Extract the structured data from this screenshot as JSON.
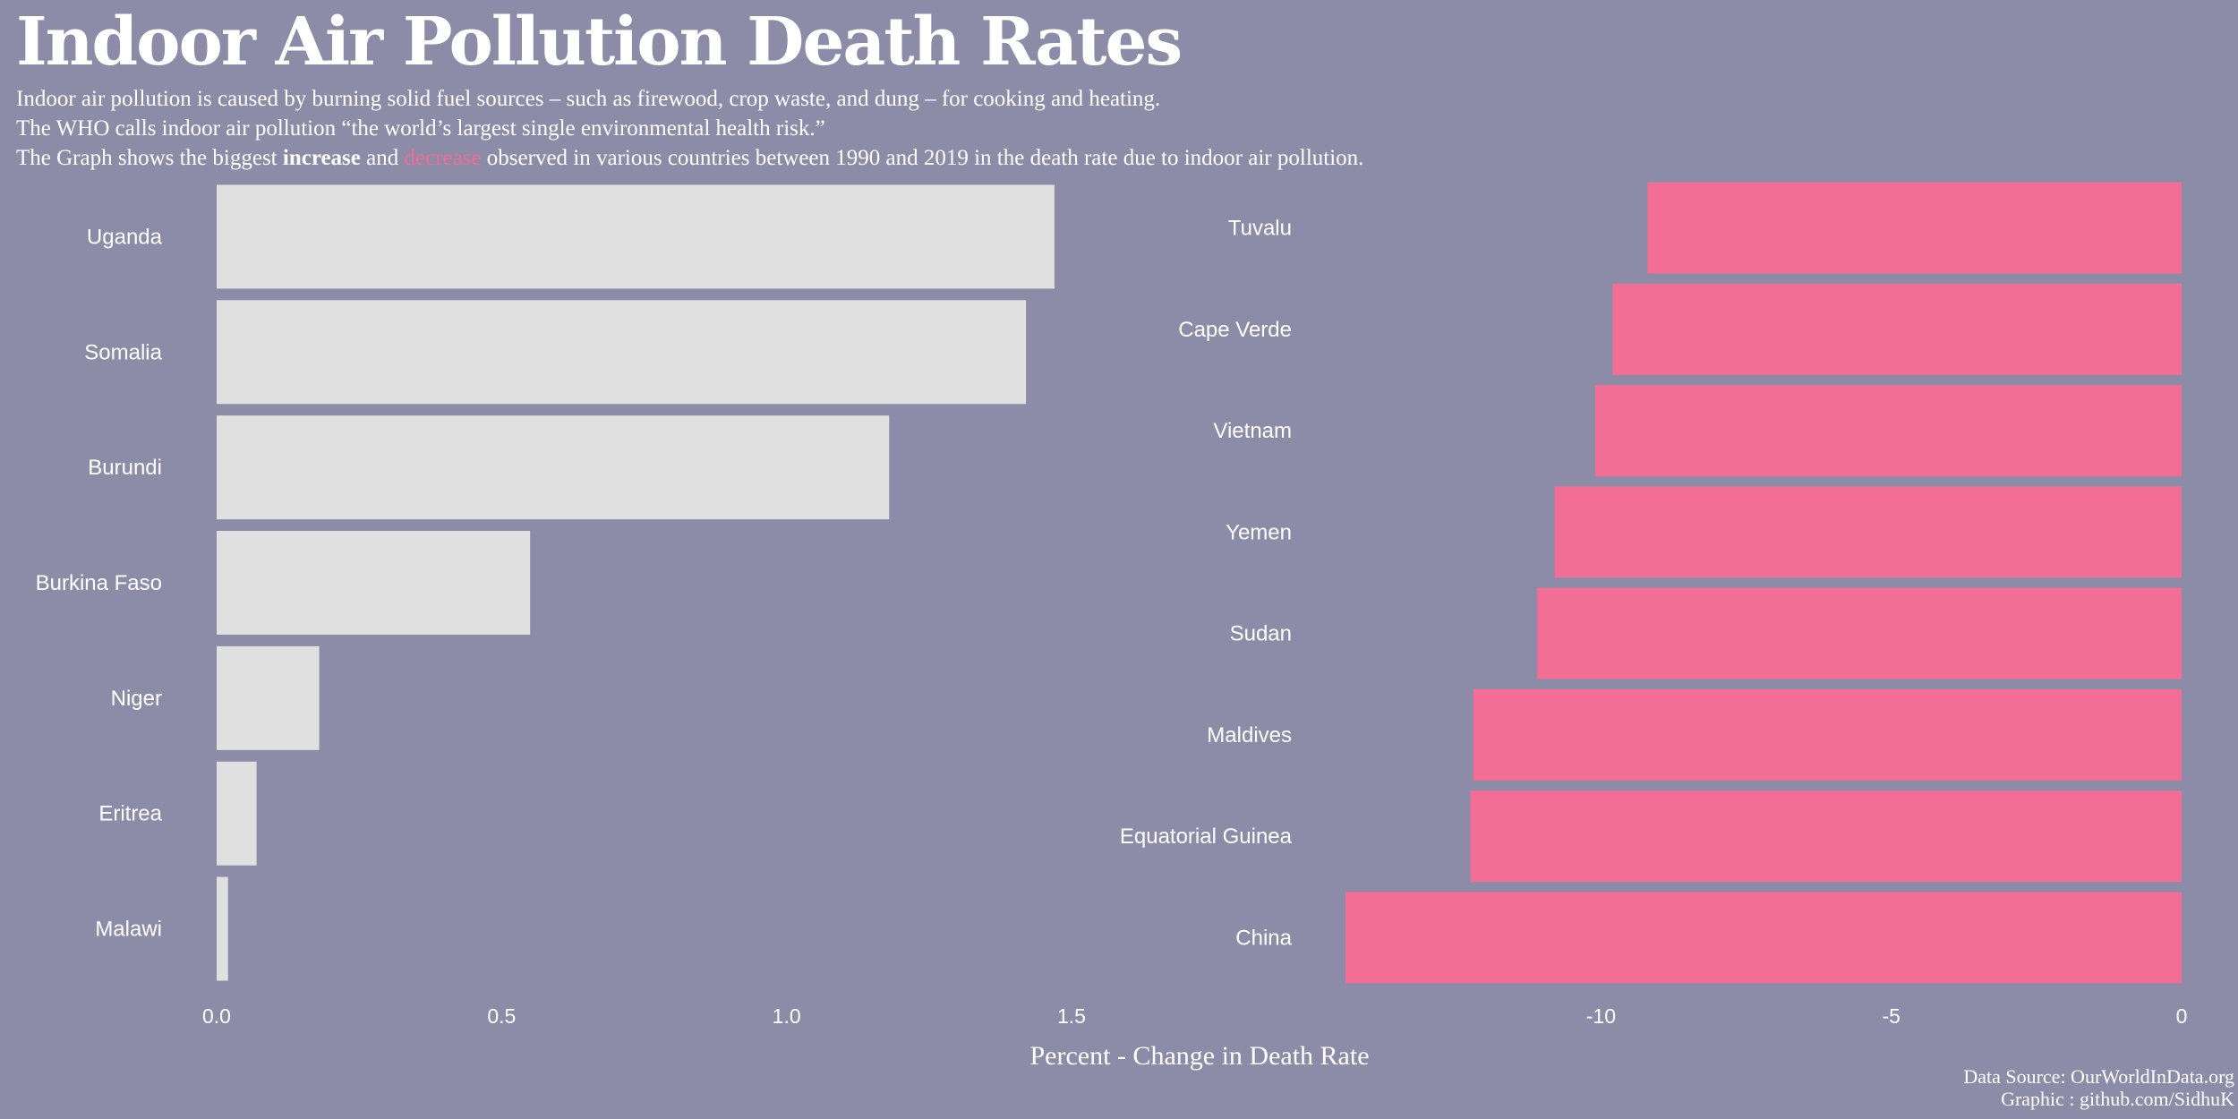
{
  "title": "Indoor Air Pollution Death Rates",
  "subtitle": {
    "line1": "Indoor air pollution is caused by burning solid fuel sources – such as firewood, crop waste, and dung – for cooking and heating.",
    "line2": "The WHO calls indoor air pollution “the world’s largest single environmental health risk.”",
    "line3_a": "The Graph  shows the biggest ",
    "line3_increase": "increase",
    "line3_b": " and ",
    "line3_decrease": "decrease",
    "line3_c": "  observed in various  countries between 1990 and 2019 in the death rate due to indoor air pollution."
  },
  "source": {
    "line1": "Data Source: OurWorldInData.org",
    "line2": "Graphic : github.com/SidhuK"
  },
  "colors": {
    "background": "#8c8ca8",
    "increase": "#e0e0e0",
    "decrease": "#f26e94",
    "text": "#ffffff"
  },
  "chart_data": {
    "type": "bar",
    "orientation": "horizontal",
    "xlabel": "Percent - Change in Death Rate",
    "panels": [
      {
        "name": "increase",
        "categories": [
          "Uganda",
          "Somalia",
          "Burundi",
          "Burkina Faso",
          "Niger",
          "Eritrea",
          "Malawi"
        ],
        "values": [
          1.47,
          1.42,
          1.18,
          0.55,
          0.18,
          0.07,
          0.02
        ],
        "xlim": [
          0,
          1.5
        ],
        "ticks": [
          0,
          0.5,
          1.0,
          1.5
        ],
        "tick_labels": [
          "0.0",
          "0.5",
          "1.0",
          "1.5"
        ]
      },
      {
        "name": "decrease",
        "categories": [
          "Tuvalu",
          "Cape Verde",
          "Vietnam",
          "Yemen",
          "Sudan",
          "Maldives",
          "Equatorial Guinea",
          "China"
        ],
        "values": [
          -9.2,
          -9.8,
          -10.1,
          -10.8,
          -11.1,
          -12.2,
          -12.25,
          -14.4
        ],
        "xlim": [
          -14.4,
          0
        ],
        "ticks": [
          -10,
          -5,
          0
        ],
        "tick_labels": [
          "-10",
          "-5",
          "0"
        ]
      }
    ],
    "grid": false,
    "legend": "none"
  }
}
